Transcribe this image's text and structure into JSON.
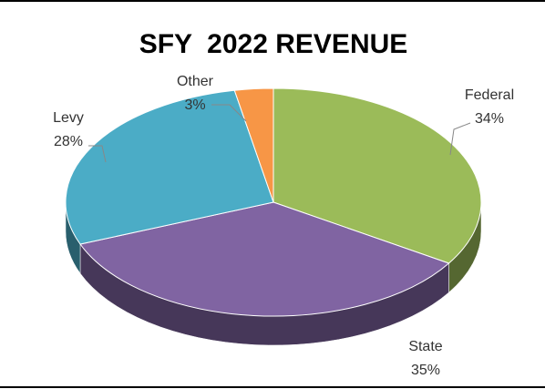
{
  "chart_data": {
    "type": "pie",
    "title": "SFY  2022 REVENUE",
    "categories": [
      "Federal",
      "State",
      "Levy",
      "Other"
    ],
    "values": [
      34,
      35,
      28,
      3
    ],
    "value_labels": [
      "34%",
      "35%",
      "28%",
      "3%"
    ],
    "colors": [
      "#9bbb59",
      "#8064a2",
      "#4bacc6",
      "#f79646"
    ]
  }
}
